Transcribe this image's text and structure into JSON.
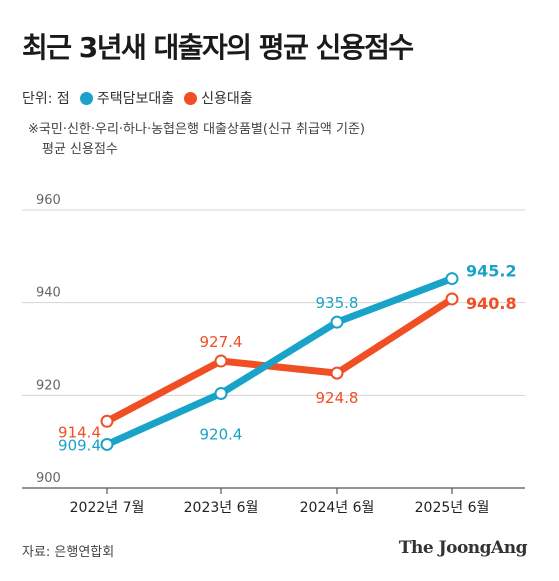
{
  "chart_data": {
    "type": "line",
    "title": "최근 3년새 대출자의 평균 신용점수",
    "unit_label": "단위: 점",
    "note_line1": "※국민·신한·우리·하나·농협은행 대출상품별(신규 취급액 기준)",
    "note_line2": "평균 신용점수",
    "categories": [
      "2022년 7월",
      "2023년 6월",
      "2024년 6월",
      "2025년 6월"
    ],
    "ylim": [
      900,
      960
    ],
    "yticks": [
      900,
      920,
      940,
      960
    ],
    "ytick_labels": [
      "900",
      "920",
      "940",
      "960"
    ],
    "grid": true,
    "legend_position": "top-left",
    "series": [
      {
        "name": "주택담보대출",
        "color": "#1aa3c8",
        "values": [
          909.4,
          920.4,
          935.8,
          945.2
        ],
        "labels": [
          "909.4",
          "920.4",
          "935.8",
          "945.2"
        ]
      },
      {
        "name": "신용대출",
        "color": "#f04e23",
        "values": [
          914.4,
          927.4,
          924.8,
          940.8
        ],
        "labels": [
          "914.4",
          "927.4",
          "924.8",
          "940.8"
        ]
      }
    ],
    "source": "자료: 은행연합회",
    "brand": "The JoongAng"
  }
}
